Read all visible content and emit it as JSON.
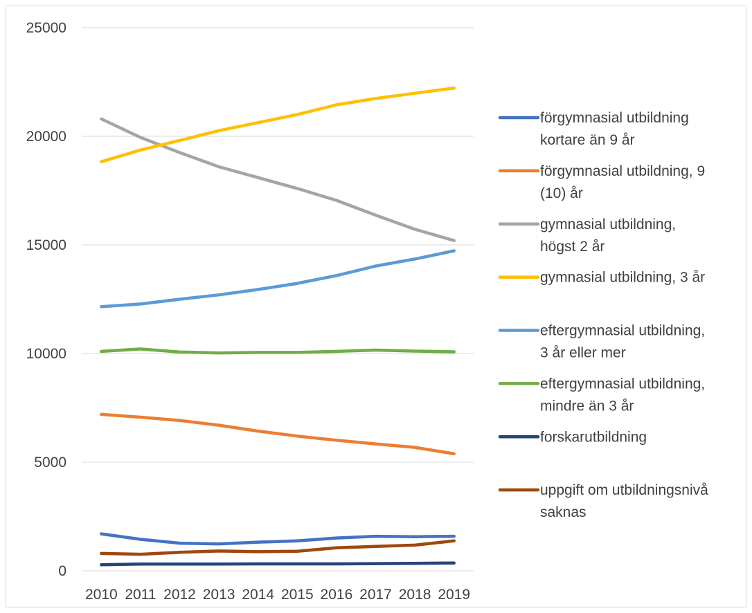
{
  "chart_data": {
    "type": "line",
    "title": "",
    "xlabel": "",
    "ylabel": "",
    "x": [
      "2010",
      "2011",
      "2012",
      "2013",
      "2014",
      "2015",
      "2016",
      "2017",
      "2018",
      "2019"
    ],
    "ylim": [
      0,
      25000
    ],
    "yticks": [
      "0",
      "5000",
      "10000",
      "15000",
      "20000",
      "25000"
    ],
    "ytick_values": [
      0,
      5000,
      10000,
      15000,
      20000,
      25000
    ],
    "grid": true,
    "legend_position": "right",
    "series": [
      {
        "name": "förgymnasial utbildning kortare än 9 år",
        "legend_lines": [
          "förgymnasial utbildning",
          "kortare än 9 år"
        ],
        "color": "#4472c4",
        "values": [
          1700,
          1450,
          1270,
          1240,
          1320,
          1380,
          1510,
          1590,
          1570,
          1590
        ]
      },
      {
        "name": "förgymnasial utbildning, 9 (10) år",
        "legend_lines": [
          "förgymnasial utbildning, 9",
          "(10) år"
        ],
        "color": "#ed7d31",
        "values": [
          7200,
          7070,
          6920,
          6700,
          6430,
          6200,
          6010,
          5840,
          5680,
          5390
        ]
      },
      {
        "name": "gymnasial utbildning, högst 2 år",
        "legend_lines": [
          "gymnasial utbildning,",
          "högst 2 år"
        ],
        "color": "#a5a5a5",
        "values": [
          20800,
          19950,
          19250,
          18600,
          18100,
          17600,
          17050,
          16370,
          15720,
          15200
        ]
      },
      {
        "name": "gymnasial utbildning, 3 år",
        "legend_lines": [
          "gymnasial utbildning, 3 år"
        ],
        "color": "#ffc000",
        "values": [
          18830,
          19370,
          19810,
          20260,
          20630,
          21000,
          21450,
          21740,
          21980,
          22220
        ]
      },
      {
        "name": "eftergymnasial utbildning, 3 år eller mer",
        "legend_lines": [
          "eftergymnasial utbildning,",
          "3 år eller mer"
        ],
        "color": "#5b9bd5",
        "values": [
          12160,
          12280,
          12500,
          12700,
          12950,
          13230,
          13590,
          14030,
          14350,
          14730
        ]
      },
      {
        "name": "eftergymnasial utbildning, mindre än 3 år",
        "legend_lines": [
          "eftergymnasial utbildning,",
          "mindre än 3 år"
        ],
        "color": "#70ad47",
        "values": [
          10100,
          10210,
          10070,
          10030,
          10050,
          10050,
          10100,
          10160,
          10110,
          10080
        ]
      },
      {
        "name": "forskarutbildning",
        "legend_lines": [
          "forskarutbildning"
        ],
        "color": "#264478",
        "values": [
          280,
          310,
          310,
          310,
          320,
          320,
          320,
          330,
          340,
          360
        ]
      },
      {
        "name": "uppgift om utbildningsnivå saknas",
        "legend_lines": [
          "uppgift om utbildningsnivå",
          "saknas"
        ],
        "color": "#9e480e",
        "values": [
          800,
          760,
          850,
          910,
          880,
          900,
          1060,
          1120,
          1180,
          1380
        ]
      }
    ]
  }
}
